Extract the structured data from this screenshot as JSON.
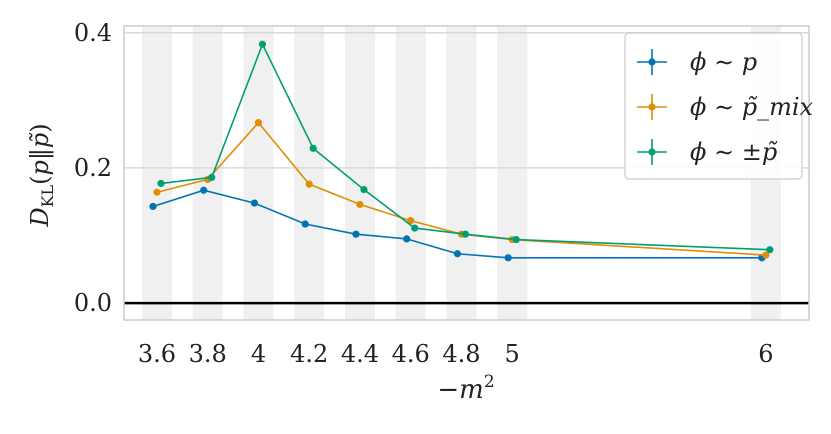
{
  "chart_data": {
    "type": "line",
    "xlabel": "−m²",
    "ylabel": "D_KL(p‖p̃)",
    "xlim": [
      3.47,
      6.17
    ],
    "ylim": [
      -0.025,
      0.41
    ],
    "x_ticks": [
      3.6,
      3.8,
      4.0,
      4.2,
      4.4,
      4.6,
      4.8,
      5.0,
      6.0
    ],
    "x_tick_labels": [
      "3.6",
      "3.8",
      "4",
      "4.2",
      "4.4",
      "4.6",
      "4.8",
      "5",
      "6"
    ],
    "y_ticks": [
      0.0,
      0.2,
      0.4
    ],
    "y_tick_labels": [
      "0.0",
      "0.2",
      "0.4"
    ],
    "grid": true,
    "legend_position": "top-right",
    "series": [
      {
        "name": "ϕ ∼ p",
        "color": "#0173b2",
        "x": [
          3.6,
          3.8,
          4.0,
          4.2,
          4.4,
          4.6,
          4.8,
          5.0,
          6.0
        ],
        "values": [
          0.143,
          0.167,
          0.148,
          0.117,
          0.102,
          0.095,
          0.073,
          0.067,
          0.067
        ]
      },
      {
        "name": "ϕ ∼ p̃_mix",
        "color": "#de8f05",
        "x": [
          3.6,
          3.8,
          4.0,
          4.2,
          4.4,
          4.6,
          4.8,
          5.0,
          6.0
        ],
        "values": [
          0.164,
          0.183,
          0.267,
          0.176,
          0.146,
          0.122,
          0.102,
          0.094,
          0.071
        ]
      },
      {
        "name": "ϕ ∼ ±p̃",
        "color": "#029e73",
        "x": [
          3.6,
          3.8,
          4.0,
          4.2,
          4.4,
          4.6,
          4.8,
          5.0,
          6.0
        ],
        "values": [
          0.177,
          0.186,
          0.383,
          0.229,
          0.168,
          0.111,
          0.102,
          0.094,
          0.079
        ]
      }
    ]
  }
}
